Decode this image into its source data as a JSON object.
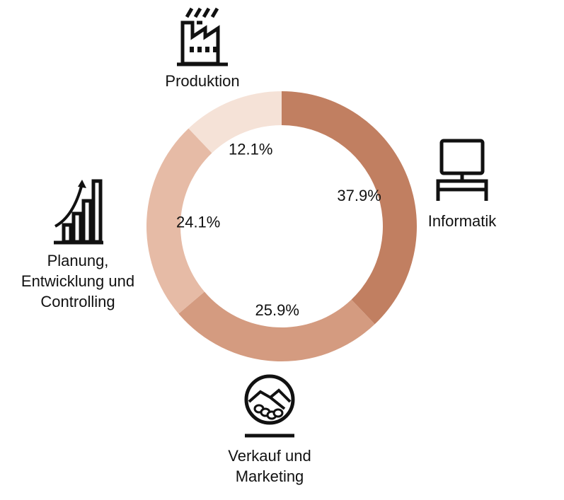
{
  "chart_data": {
    "type": "pie",
    "style": "donut",
    "start_angle": 0,
    "direction": "clockwise",
    "segments": [
      {
        "label_lines": [
          "Informatik"
        ],
        "value": 37.9,
        "value_label": "37.9%",
        "color": "#c17f61",
        "icon": "computer-icon"
      },
      {
        "label_lines": [
          "Verkauf und",
          "Marketing"
        ],
        "value": 25.9,
        "value_label": "25.9%",
        "color": "#d49b80",
        "icon": "handshake-icon"
      },
      {
        "label_lines": [
          "Planung,",
          "Entwicklung und",
          "Controlling"
        ],
        "value": 24.1,
        "value_label": "24.1%",
        "color": "#e6bba6",
        "icon": "growth-chart-icon"
      },
      {
        "label_lines": [
          "Produktion"
        ],
        "value": 12.1,
        "value_label": "12.1%",
        "color": "#f5e2d7",
        "icon": "factory-icon"
      }
    ],
    "legend": "labels around chart"
  }
}
